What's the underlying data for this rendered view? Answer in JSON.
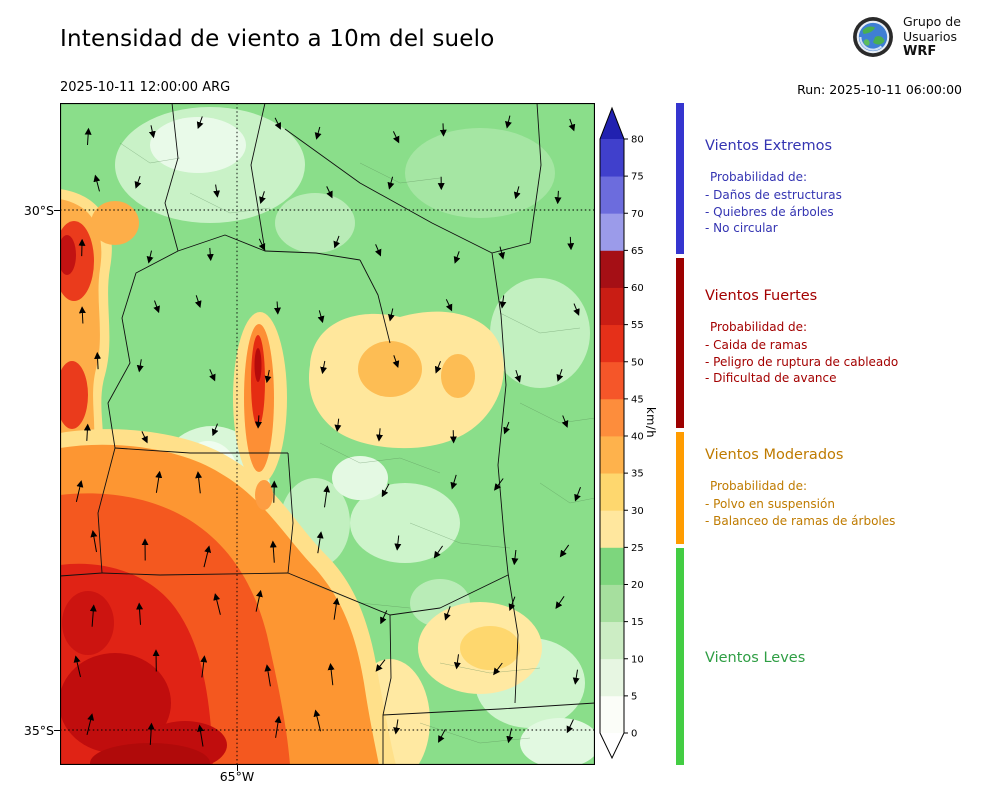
{
  "header": {
    "title": "Intensidad de viento a 10m del suelo",
    "valid": "2025-10-11 12:00:00 ARG",
    "run": "Run: 2025-10-11 06:00:00",
    "logo": {
      "line1": "Grupo de",
      "line2": "Usuarios",
      "line3": "WRF"
    }
  },
  "map": {
    "lat_top_label": "30°S",
    "lat_bottom_label": "35°S",
    "lon_label": "65°W"
  },
  "colorbar": {
    "unit": "km/h",
    "ticks": [
      0,
      5,
      10,
      15,
      20,
      25,
      30,
      35,
      40,
      45,
      50,
      55,
      60,
      65,
      70,
      75,
      80
    ],
    "colors": [
      "#fbfdf8",
      "#e7f6e2",
      "#ccedc4",
      "#a6df9e",
      "#7dd67d",
      "#ffe79e",
      "#fed76e",
      "#feb24c",
      "#fd8d3c",
      "#f55629",
      "#e53019",
      "#c91d14",
      "#a50f15",
      "#9b9bea",
      "#6c6cdd",
      "#4040cc"
    ],
    "over_color": "#2121b0",
    "under_color": "#ffffff"
  },
  "legend": {
    "categories": [
      {
        "name": "Vientos Extremos",
        "color": "#3434b2",
        "bar_color": "#3535cf",
        "prob": "Probabilidad de:",
        "items": [
          "- Daños de estructuras",
          "- Quiebres de árboles",
          "- No circular"
        ]
      },
      {
        "name": "Vientos Fuertes",
        "color": "#a30000",
        "bar_color": "#9c0000",
        "prob": "Probabilidad de:",
        "items": [
          "- Caida de ramas",
          "- Peligro de ruptura de cableado",
          "- Dificultad de avance"
        ]
      },
      {
        "name": "Vientos Moderados",
        "color": "#bf7b00",
        "bar_color": "#ff9c00",
        "prob": "Probabilidad de:",
        "items": [
          "- Polvo en suspensión",
          "- Balanceo de ramas de árboles"
        ]
      },
      {
        "name": "Vientos Leves",
        "color": "#2f9e44",
        "bar_color": "#43cd43",
        "prob": "",
        "items": []
      }
    ]
  }
}
